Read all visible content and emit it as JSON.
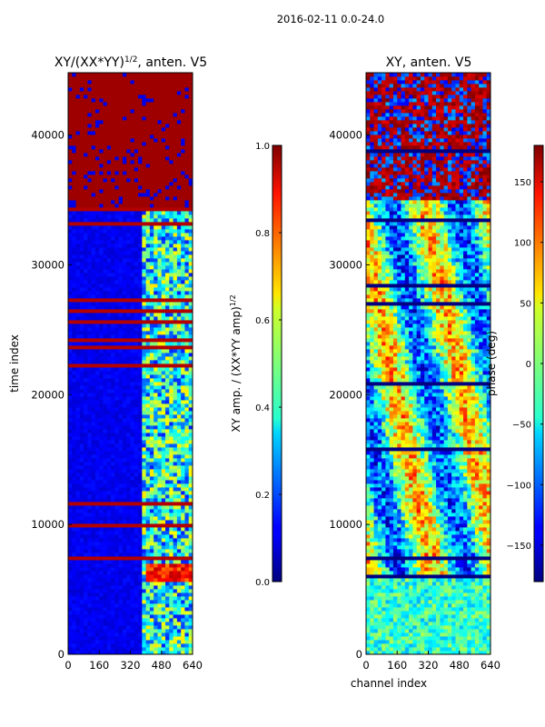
{
  "figure": {
    "suptitle": "2016-02-11 0.0-24.0"
  },
  "chart_data": [
    {
      "type": "heatmap",
      "title": "XY/(XX*YY)",
      "title_sup": "1/2",
      "title_suffix": ", anten. V5",
      "xlabel": "",
      "ylabel": "time index",
      "xlim": [
        0,
        640
      ],
      "ylim": [
        0,
        44800
      ],
      "xticks": [
        0,
        160,
        320,
        480,
        640
      ],
      "yticks": [
        0,
        10000,
        20000,
        30000,
        40000
      ],
      "colormap": "jet",
      "colorbar": {
        "label": "XY amp. / (XX*YY amp)",
        "label_sup": "1/2",
        "range": [
          0.0,
          1.0
        ],
        "ticks": [
          "0.0",
          "0.2",
          "0.4",
          "0.6",
          "0.8",
          "1.0"
        ]
      },
      "flagged_rows_above": 34500,
      "flag_value": 1.0
    },
    {
      "type": "heatmap",
      "title": "XY, anten. V5",
      "xlabel": "channel index",
      "ylabel": "",
      "xlim": [
        0,
        640
      ],
      "ylim": [
        0,
        44800
      ],
      "xticks": [
        0,
        160,
        320,
        480,
        640
      ],
      "yticks": [
        0,
        10000,
        20000,
        30000,
        40000
      ],
      "colormap": "jet",
      "colorbar": {
        "label": "phase (deg)",
        "range": [
          -180,
          180
        ],
        "ticks": [
          "150",
          "100",
          "50",
          "0",
          "−50",
          "−100",
          "−150"
        ],
        "tick_values": [
          150,
          100,
          50,
          0,
          -50,
          -100,
          -150
        ]
      }
    }
  ]
}
